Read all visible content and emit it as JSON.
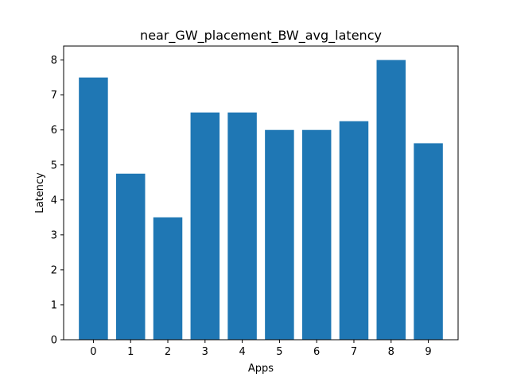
{
  "chart_data": {
    "type": "bar",
    "title": "near_GW_placement_BW_avg_latency",
    "xlabel": "Apps",
    "ylabel": "Latency",
    "categories": [
      "0",
      "1",
      "2",
      "3",
      "4",
      "5",
      "6",
      "7",
      "8",
      "9"
    ],
    "values": [
      7.5,
      4.75,
      3.5,
      6.5,
      6.5,
      6.0,
      6.0,
      6.25,
      8.0,
      5.62
    ],
    "ylim": [
      0,
      8.4
    ],
    "yticks": [
      "0",
      "1",
      "2",
      "3",
      "4",
      "5",
      "6",
      "7",
      "8"
    ],
    "grid": false,
    "legend": "none",
    "bar_color": "#1f77b4"
  }
}
